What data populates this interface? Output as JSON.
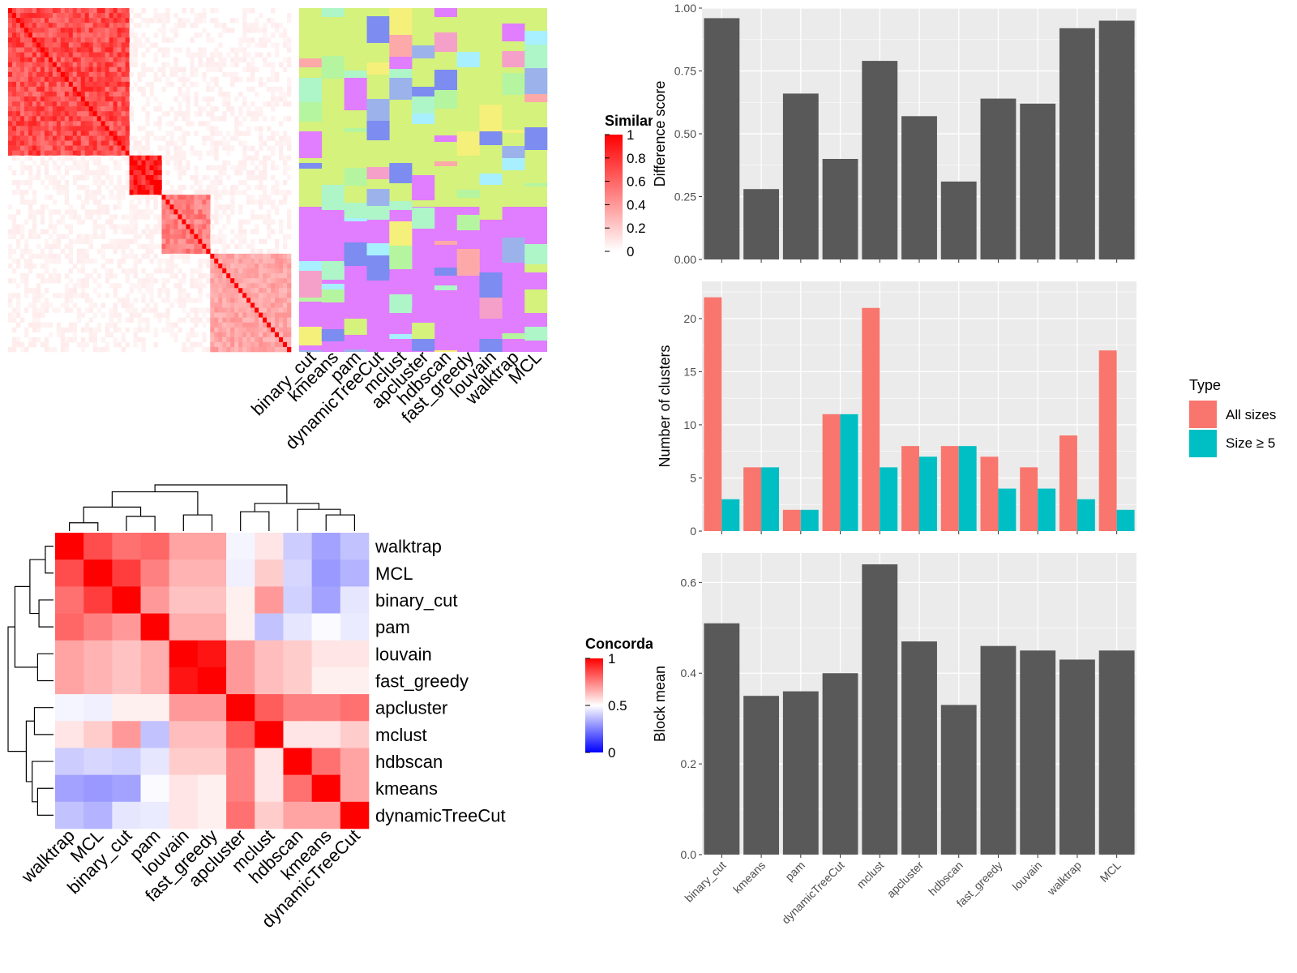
{
  "methods_order": [
    "binary_cut",
    "kmeans",
    "pam",
    "dynamicTreeCut",
    "mclust",
    "apcluster",
    "hdbscan",
    "fast_greedy",
    "louvain",
    "walktrap",
    "MCL"
  ],
  "similarity_legend": {
    "title": "Similarity",
    "ticks": [
      "1",
      "0.8",
      "0.6",
      "0.4",
      "0.2",
      "0"
    ]
  },
  "concordance_legend": {
    "title": "Concordance",
    "ticks": [
      "1",
      "0.5",
      "0"
    ]
  },
  "colors": {
    "bar_fill": "#595959",
    "panel_bg": "#ebebeb",
    "all_sizes": "#F8766D",
    "size5": "#00BFC4",
    "sim_high": "#ff0000",
    "conc_high": "#ff0000",
    "conc_mid": "#ffffff",
    "conc_low": "#0000ff"
  },
  "chart_data": [
    {
      "type": "heatmap",
      "name": "similarity-matrix",
      "title": "",
      "legend_title": "Similarity",
      "range": [
        0,
        1
      ],
      "blocks": [
        {
          "size": 60,
          "within": 0.7
        },
        {
          "size": 15,
          "within": 0.9
        },
        {
          "size": 25,
          "within": 0.5
        },
        {
          "size": 40,
          "within": 0.35
        }
      ]
    },
    {
      "type": "heatmap",
      "name": "cluster-labels",
      "title": "",
      "columns": [
        "binary_cut",
        "kmeans",
        "pam",
        "dynamicTreeCut",
        "mclust",
        "apcluster",
        "hdbscan",
        "fast_greedy",
        "louvain",
        "walktrap",
        "MCL"
      ]
    },
    {
      "type": "heatmap",
      "name": "concordance-matrix",
      "title": "",
      "legend_title": "Concordance",
      "labels": [
        "walktrap",
        "MCL",
        "binary_cut",
        "pam",
        "louvain",
        "fast_greedy",
        "apcluster",
        "mclust",
        "hdbscan",
        "kmeans",
        "dynamicTreeCut"
      ],
      "values": [
        [
          1.0,
          0.85,
          0.78,
          0.8,
          0.68,
          0.68,
          0.48,
          0.55,
          0.4,
          0.32,
          0.38
        ],
        [
          0.85,
          1.0,
          0.88,
          0.75,
          0.65,
          0.65,
          0.47,
          0.6,
          0.42,
          0.3,
          0.35
        ],
        [
          0.78,
          0.88,
          1.0,
          0.7,
          0.62,
          0.62,
          0.53,
          0.7,
          0.41,
          0.32,
          0.45
        ],
        [
          0.8,
          0.75,
          0.7,
          1.0,
          0.66,
          0.66,
          0.53,
          0.38,
          0.45,
          0.49,
          0.46
        ],
        [
          0.68,
          0.65,
          0.62,
          0.66,
          1.0,
          0.96,
          0.7,
          0.63,
          0.6,
          0.55,
          0.55
        ],
        [
          0.68,
          0.65,
          0.62,
          0.66,
          0.96,
          1.0,
          0.7,
          0.63,
          0.6,
          0.53,
          0.53
        ],
        [
          0.48,
          0.47,
          0.53,
          0.53,
          0.7,
          0.7,
          1.0,
          0.82,
          0.75,
          0.75,
          0.78
        ],
        [
          0.55,
          0.6,
          0.7,
          0.38,
          0.63,
          0.63,
          0.82,
          1.0,
          0.55,
          0.55,
          0.6
        ],
        [
          0.4,
          0.42,
          0.41,
          0.45,
          0.6,
          0.6,
          0.75,
          0.55,
          1.0,
          0.78,
          0.68
        ],
        [
          0.32,
          0.3,
          0.32,
          0.49,
          0.55,
          0.53,
          0.75,
          0.55,
          0.78,
          1.0,
          0.68
        ],
        [
          0.38,
          0.35,
          0.45,
          0.46,
          0.55,
          0.53,
          0.78,
          0.6,
          0.68,
          0.68,
          1.0
        ]
      ]
    },
    {
      "type": "bar",
      "name": "difference-score",
      "title": "",
      "categories": [
        "binary_cut",
        "kmeans",
        "pam",
        "dynamicTreeCut",
        "mclust",
        "apcluster",
        "hdbscan",
        "fast_greedy",
        "louvain",
        "walktrap",
        "MCL"
      ],
      "values": [
        0.96,
        0.28,
        0.66,
        0.4,
        0.79,
        0.57,
        0.31,
        0.64,
        0.62,
        0.92,
        0.95
      ],
      "xlabel": "",
      "ylabel": "Difference score",
      "ylim": [
        0,
        1.0
      ],
      "yticks": [
        "0.00",
        "0.25",
        "0.50",
        "0.75",
        "1.00"
      ],
      "grid": true
    },
    {
      "type": "bar",
      "name": "number-of-clusters",
      "title": "",
      "categories": [
        "binary_cut",
        "kmeans",
        "pam",
        "dynamicTreeCut",
        "mclust",
        "apcluster",
        "hdbscan",
        "fast_greedy",
        "louvain",
        "walktrap",
        "MCL"
      ],
      "series": [
        {
          "name": "All sizes",
          "values": [
            22,
            6,
            2,
            11,
            21,
            8,
            8,
            7,
            6,
            9,
            17
          ]
        },
        {
          "name": "Size ≥ 5",
          "values": [
            3,
            6,
            2,
            11,
            6,
            7,
            8,
            4,
            4,
            3,
            2
          ]
        }
      ],
      "xlabel": "",
      "ylabel": "Number of clusters",
      "ylim": [
        0,
        23.5
      ],
      "yticks": [
        "0",
        "5",
        "10",
        "15",
        "20"
      ],
      "legend_title": "Type",
      "legend_position": "right",
      "grid": true
    },
    {
      "type": "bar",
      "name": "block-mean",
      "title": "",
      "categories": [
        "binary_cut",
        "kmeans",
        "pam",
        "dynamicTreeCut",
        "mclust",
        "apcluster",
        "hdbscan",
        "fast_greedy",
        "louvain",
        "walktrap",
        "MCL"
      ],
      "values": [
        0.51,
        0.35,
        0.36,
        0.4,
        0.64,
        0.47,
        0.33,
        0.46,
        0.45,
        0.43,
        0.45
      ],
      "xlabel": "",
      "ylabel": "Block mean",
      "ylim": [
        0,
        0.665
      ],
      "yticks": [
        "0.0",
        "0.2",
        "0.4",
        "0.6"
      ],
      "grid": true
    }
  ]
}
